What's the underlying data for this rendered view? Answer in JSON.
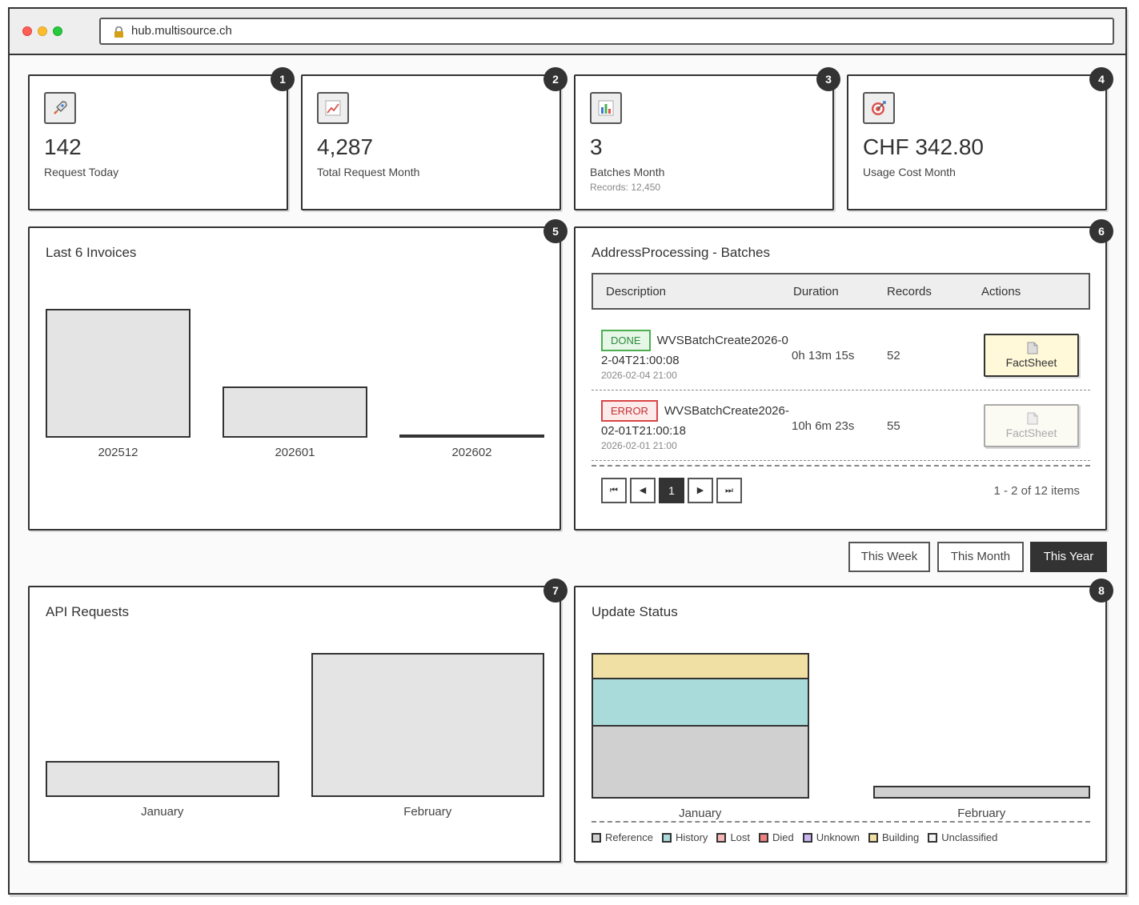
{
  "browser": {
    "url": "hub.multisource.ch"
  },
  "stats": [
    {
      "badge": "1",
      "icon": "rocket-icon",
      "value": "142",
      "label": "Request Today",
      "sub": ""
    },
    {
      "badge": "2",
      "icon": "chart-up-icon",
      "value": "4,287",
      "label": "Total Request Month",
      "sub": ""
    },
    {
      "badge": "3",
      "icon": "bar-chart-icon",
      "value": "3",
      "label": "Batches Month",
      "sub": "Records: 12,450"
    },
    {
      "badge": "4",
      "icon": "target-icon",
      "value": "CHF 342.80",
      "label": "Usage Cost Month",
      "sub": ""
    }
  ],
  "invoices": {
    "badge": "5",
    "title": "Last 6 Invoices",
    "chart_data": {
      "type": "bar",
      "categories": [
        "202512",
        "202601",
        "202602"
      ],
      "values": [
        100,
        40,
        1.5
      ],
      "ylim": [
        0,
        100
      ]
    }
  },
  "batches": {
    "badge": "6",
    "title": "AddressProcessing - Batches",
    "columns": {
      "description": "Description",
      "duration": "Duration",
      "records": "Records",
      "actions": "Actions"
    },
    "rows": [
      {
        "status": "DONE",
        "status_type": "done",
        "name": "WVSBatchCreate2026-02-04T21:00:08",
        "date": "2026-02-04 21:00",
        "duration": "0h 13m 15s",
        "records": "52",
        "action": "FactSheet",
        "action_enabled": true
      },
      {
        "status": "ERROR",
        "status_type": "error",
        "name": "WVSBatchCreate2026-02-01T21:00:18",
        "date": "2026-02-01 21:00",
        "duration": "10h 6m 23s",
        "records": "55",
        "action": "FactSheet",
        "action_enabled": false
      }
    ],
    "pager": {
      "first": "⏮",
      "prev": "◀",
      "page": "1",
      "next": "▶",
      "last": "⏭",
      "info": "1 - 2 of 12 items"
    }
  },
  "ranges": {
    "week": "This Week",
    "month": "This Month",
    "year": "This Year",
    "active": "year"
  },
  "api_requests": {
    "badge": "7",
    "title": "API Requests",
    "chart_data": {
      "type": "bar",
      "categories": [
        "January",
        "February"
      ],
      "values": [
        25,
        100
      ],
      "ylim": [
        0,
        100
      ]
    }
  },
  "update_status": {
    "badge": "8",
    "title": "Update Status",
    "chart_data": {
      "type": "bar",
      "stacked": true,
      "categories": [
        "January",
        "February"
      ],
      "series": [
        {
          "name": "Reference",
          "color": "#d0d0d0",
          "values": [
            50,
            8
          ]
        },
        {
          "name": "History",
          "color": "#a9dbdb",
          "values": [
            33,
            0
          ]
        },
        {
          "name": "Lost",
          "color": "#f4b6b6",
          "values": [
            0,
            0
          ]
        },
        {
          "name": "Died",
          "color": "#f08080",
          "values": [
            0,
            0
          ]
        },
        {
          "name": "Unknown",
          "color": "#c9b3f0",
          "values": [
            0,
            0
          ]
        },
        {
          "name": "Building",
          "color": "#f0e0a4",
          "values": [
            17,
            0
          ]
        },
        {
          "name": "Unclassified",
          "color": "#f5f5f5",
          "values": [
            0,
            0
          ]
        }
      ],
      "ylim": [
        0,
        100
      ],
      "legend": "bottom"
    }
  }
}
